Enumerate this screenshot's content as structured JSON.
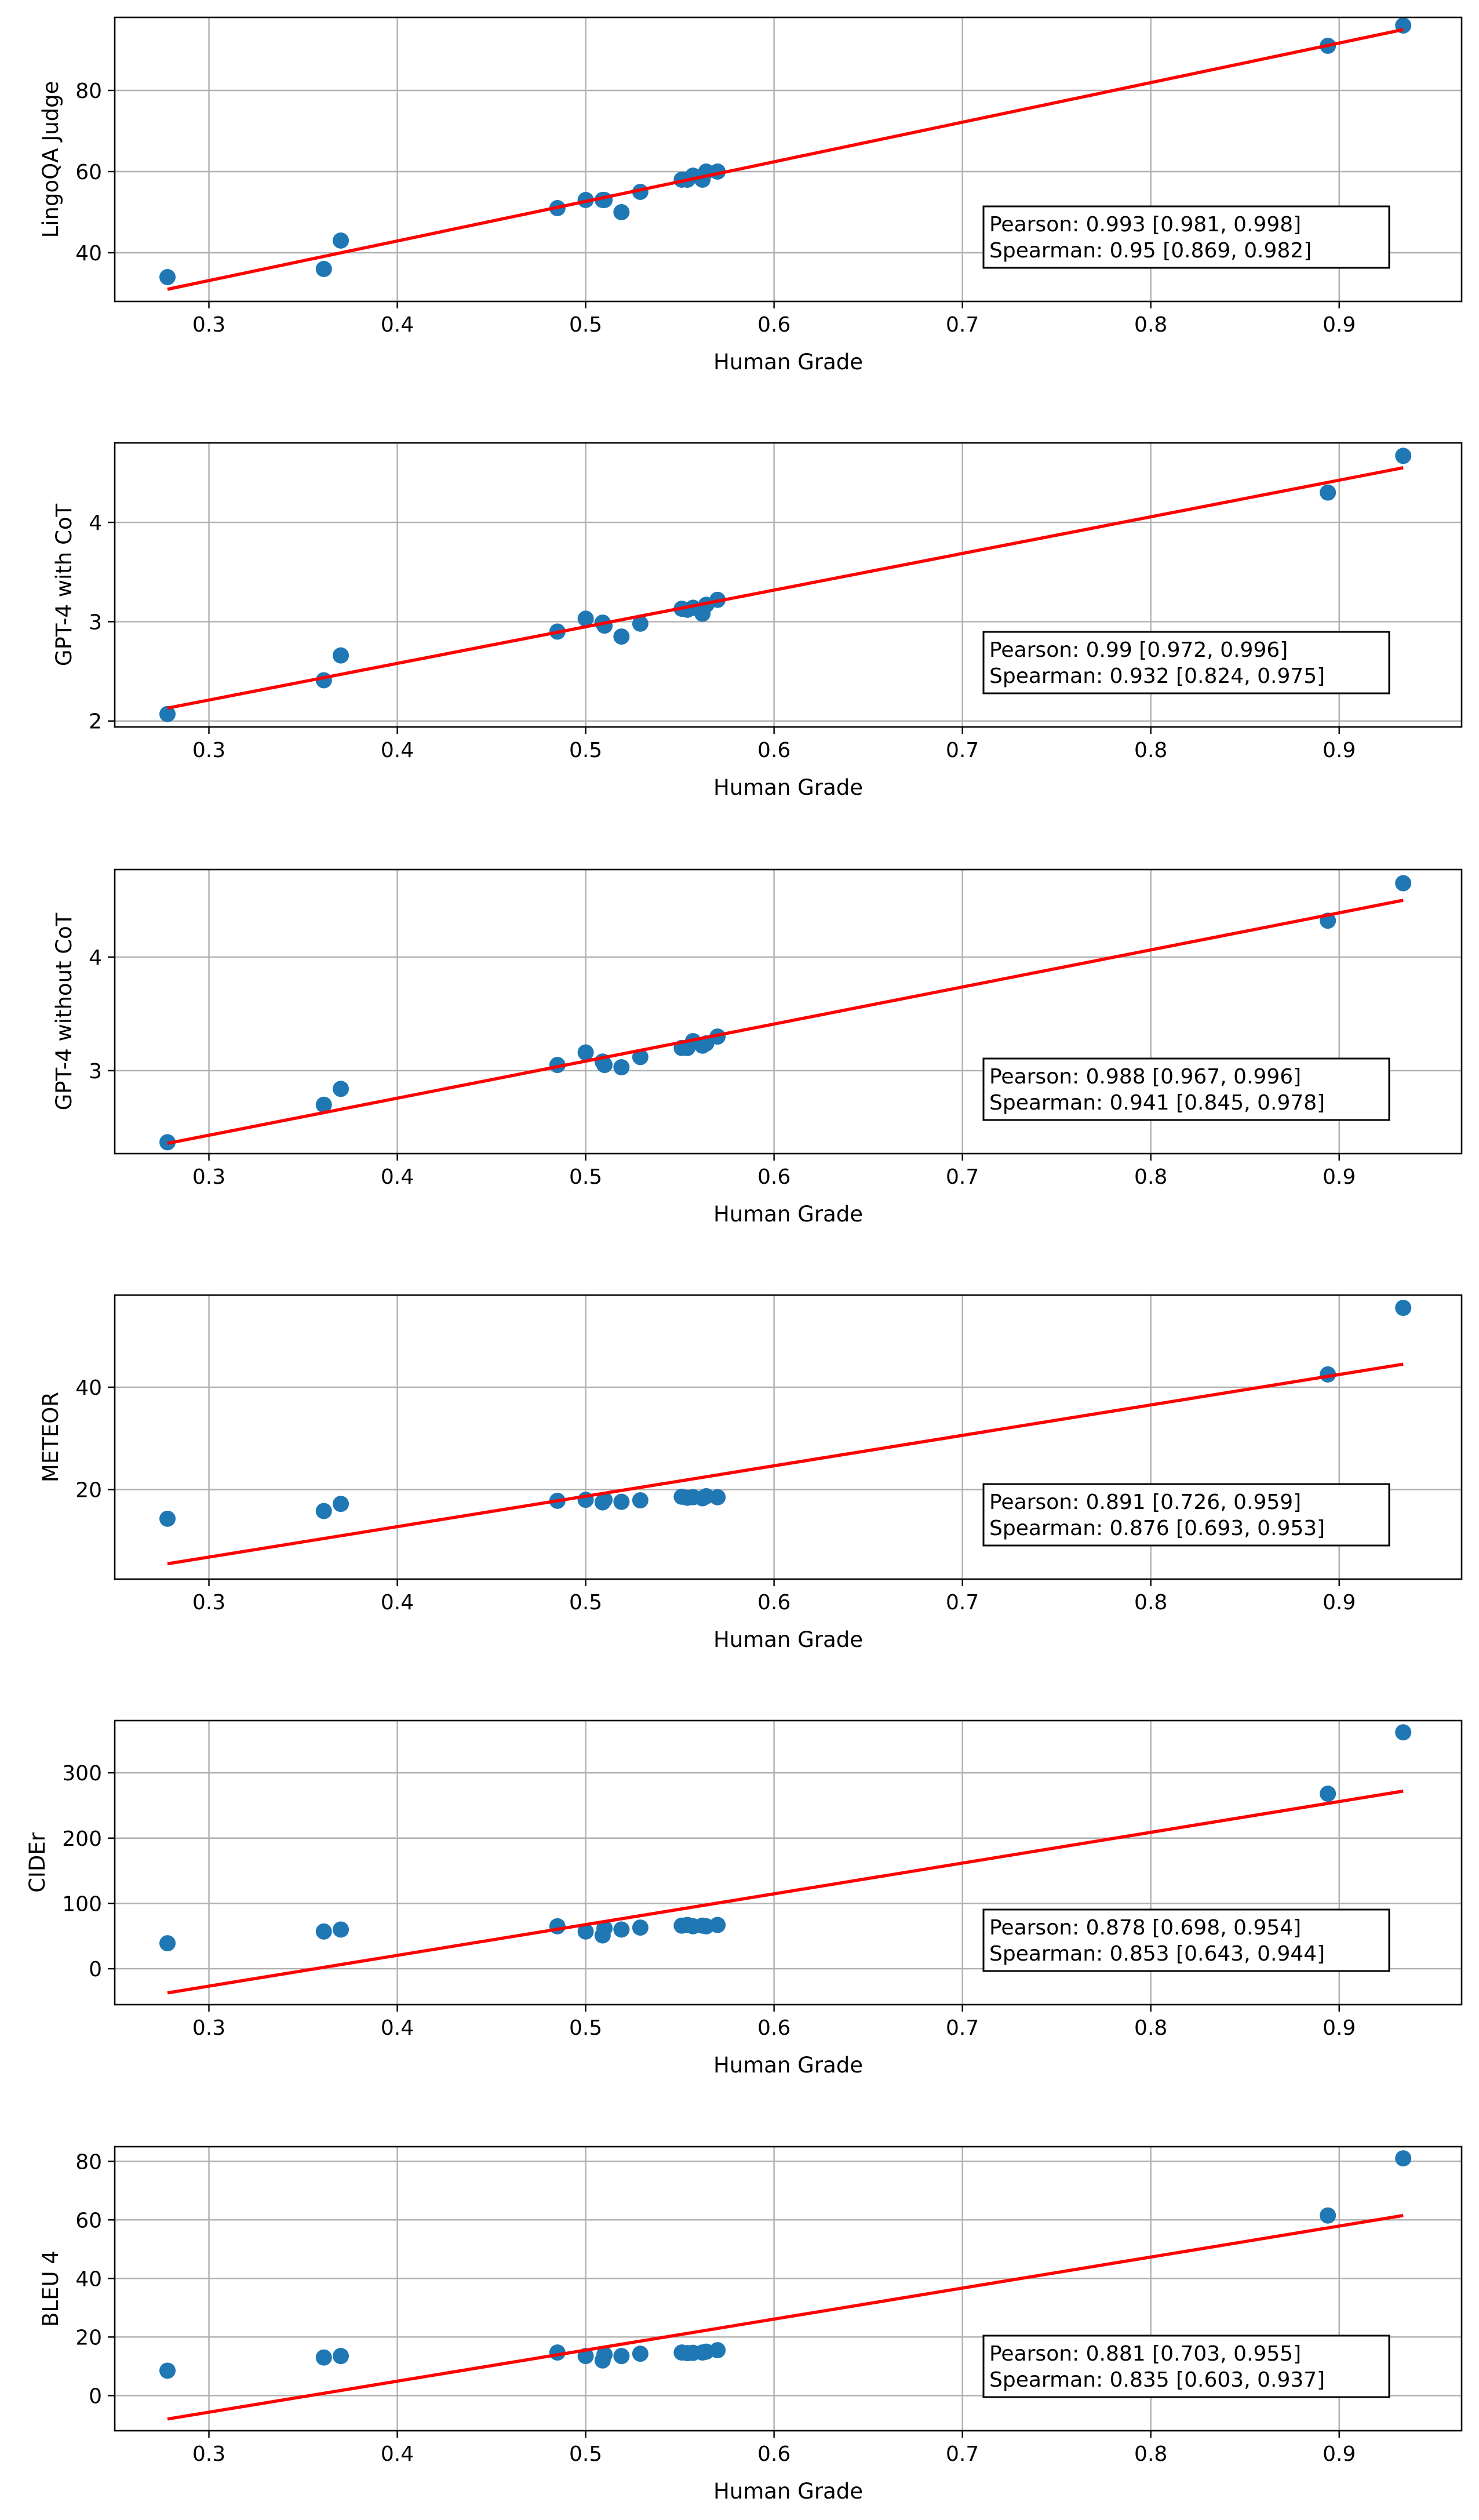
{
  "chart_data": [
    {
      "type": "scatter",
      "xlabel": "Human Grade",
      "ylabel": "LingoQA Judge",
      "xlim": [
        0.25,
        0.965
      ],
      "ylim": [
        28,
        98
      ],
      "xticks": [
        "0.3",
        "0.4",
        "0.5",
        "0.6",
        "0.7",
        "0.8",
        "0.9"
      ],
      "yticks": [
        40,
        60,
        80
      ],
      "grid": true,
      "x": [
        0.278,
        0.361,
        0.37,
        0.485,
        0.5,
        0.509,
        0.51,
        0.519,
        0.529,
        0.551,
        0.554,
        0.557,
        0.562,
        0.564,
        0.57,
        0.894,
        0.934
      ],
      "y": [
        34,
        36,
        43,
        51,
        53,
        53,
        53,
        50,
        55,
        58,
        58,
        59,
        58,
        60,
        60,
        91,
        96
      ],
      "fit": {
        "x": [
          0.278,
          0.934
        ],
        "y": [
          31,
          95
        ]
      },
      "annotation": [
        "Pearson: 0.993 [0.981, 0.998]",
        "Spearman: 0.95 [0.869, 0.982]"
      ]
    },
    {
      "type": "scatter",
      "xlabel": "Human Grade",
      "ylabel": "GPT-4 with CoT",
      "xlim": [
        0.25,
        0.965
      ],
      "ylim": [
        1.94,
        4.8
      ],
      "xticks": [
        "0.3",
        "0.4",
        "0.5",
        "0.6",
        "0.7",
        "0.8",
        "0.9"
      ],
      "yticks": [
        2,
        3,
        4
      ],
      "grid": true,
      "x": [
        0.278,
        0.361,
        0.37,
        0.485,
        0.5,
        0.509,
        0.51,
        0.519,
        0.529,
        0.551,
        0.554,
        0.557,
        0.562,
        0.564,
        0.57,
        0.894,
        0.934
      ],
      "y": [
        2.07,
        2.41,
        2.66,
        2.9,
        3.03,
        2.99,
        2.96,
        2.85,
        2.98,
        3.13,
        3.12,
        3.14,
        3.08,
        3.17,
        3.22,
        4.3,
        4.67
      ],
      "fit": {
        "x": [
          0.278,
          0.934
        ],
        "y": [
          2.13,
          4.55
        ]
      },
      "annotation": [
        "Pearson: 0.99 [0.972, 0.996]",
        "Spearman: 0.932 [0.824, 0.975]"
      ]
    },
    {
      "type": "scatter",
      "xlabel": "Human Grade",
      "ylabel": "GPT-4 without CoT",
      "xlim": [
        0.25,
        0.965
      ],
      "ylim": [
        2.27,
        4.77
      ],
      "xticks": [
        "0.3",
        "0.4",
        "0.5",
        "0.6",
        "0.7",
        "0.8",
        "0.9"
      ],
      "yticks": [
        3,
        4
      ],
      "grid": true,
      "x": [
        0.278,
        0.361,
        0.37,
        0.485,
        0.5,
        0.509,
        0.51,
        0.519,
        0.529,
        0.551,
        0.554,
        0.557,
        0.562,
        0.564,
        0.57,
        0.894,
        0.934
      ],
      "y": [
        2.37,
        2.7,
        2.84,
        3.05,
        3.16,
        3.08,
        3.05,
        3.03,
        3.12,
        3.2,
        3.2,
        3.26,
        3.22,
        3.24,
        3.3,
        4.32,
        4.65
      ],
      "fit": {
        "x": [
          0.278,
          0.934
        ],
        "y": [
          2.36,
          4.5
        ]
      },
      "annotation": [
        "Pearson: 0.988 [0.967, 0.996]",
        "Spearman: 0.941 [0.845, 0.978]"
      ]
    },
    {
      "type": "scatter",
      "xlabel": "Human Grade",
      "ylabel": "METEOR",
      "xlim": [
        0.25,
        0.965
      ],
      "ylim": [
        2.5,
        58
      ],
      "xticks": [
        "0.3",
        "0.4",
        "0.5",
        "0.6",
        "0.7",
        "0.8",
        "0.9"
      ],
      "yticks": [
        20,
        40
      ],
      "grid": true,
      "x": [
        0.278,
        0.361,
        0.37,
        0.485,
        0.5,
        0.509,
        0.51,
        0.519,
        0.529,
        0.551,
        0.554,
        0.557,
        0.562,
        0.564,
        0.57,
        0.894,
        0.934
      ],
      "y": [
        14.3,
        15.8,
        17.2,
        17.8,
        18.0,
        17.5,
        18.0,
        17.6,
        17.9,
        18.6,
        18.4,
        18.5,
        18.3,
        18.7,
        18.5,
        42.5,
        55.5
      ],
      "fit": {
        "x": [
          0.278,
          0.934
        ],
        "y": [
          5.5,
          44.5
        ]
      },
      "annotation": [
        "Pearson: 0.891 [0.726, 0.959]",
        "Spearman: 0.876 [0.693, 0.953]"
      ]
    },
    {
      "type": "scatter",
      "xlabel": "Human Grade",
      "ylabel": "CIDEr",
      "xlim": [
        0.25,
        0.965
      ],
      "ylim": [
        -55,
        380
      ],
      "xticks": [
        "0.3",
        "0.4",
        "0.5",
        "0.6",
        "0.7",
        "0.8",
        "0.9"
      ],
      "yticks": [
        0,
        100,
        200,
        300
      ],
      "grid": true,
      "x": [
        0.278,
        0.361,
        0.37,
        0.485,
        0.5,
        0.509,
        0.51,
        0.519,
        0.529,
        0.551,
        0.554,
        0.557,
        0.562,
        0.564,
        0.57,
        0.894,
        0.934
      ],
      "y": [
        39,
        57,
        60,
        65,
        57,
        51,
        62,
        60,
        63,
        66,
        67,
        65,
        66,
        65,
        67,
        268,
        362
      ],
      "fit": {
        "x": [
          0.278,
          0.934
        ],
        "y": [
          -37,
          272
        ]
      },
      "annotation": [
        "Pearson: 0.878 [0.698, 0.954]",
        "Spearman: 0.853 [0.643, 0.944]"
      ]
    },
    {
      "type": "scatter",
      "xlabel": "Human Grade",
      "ylabel": "BLEU 4",
      "xlim": [
        0.25,
        0.965
      ],
      "ylim": [
        -12,
        85
      ],
      "xticks": [
        "0.3",
        "0.4",
        "0.5",
        "0.6",
        "0.7",
        "0.8",
        "0.9"
      ],
      "yticks": [
        0,
        20,
        40,
        60,
        80
      ],
      "grid": true,
      "x": [
        0.278,
        0.361,
        0.37,
        0.485,
        0.5,
        0.509,
        0.51,
        0.519,
        0.529,
        0.551,
        0.554,
        0.557,
        0.562,
        0.564,
        0.57,
        0.894,
        0.934
      ],
      "y": [
        8.5,
        13.0,
        13.5,
        14.7,
        13.5,
        12.0,
        14.0,
        13.5,
        14.3,
        14.7,
        14.5,
        14.6,
        14.7,
        15.0,
        15.5,
        61.5,
        81.0
      ],
      "fit": {
        "x": [
          0.278,
          0.934
        ],
        "y": [
          -8,
          61.5
        ]
      },
      "annotation": [
        "Pearson: 0.881 [0.703, 0.955]",
        "Spearman: 0.835 [0.603, 0.937]"
      ]
    }
  ],
  "colors": {
    "points": "#1f77b4",
    "fit_line": "#ff0000",
    "grid": "#b0b0b0",
    "axes": "#000000"
  }
}
